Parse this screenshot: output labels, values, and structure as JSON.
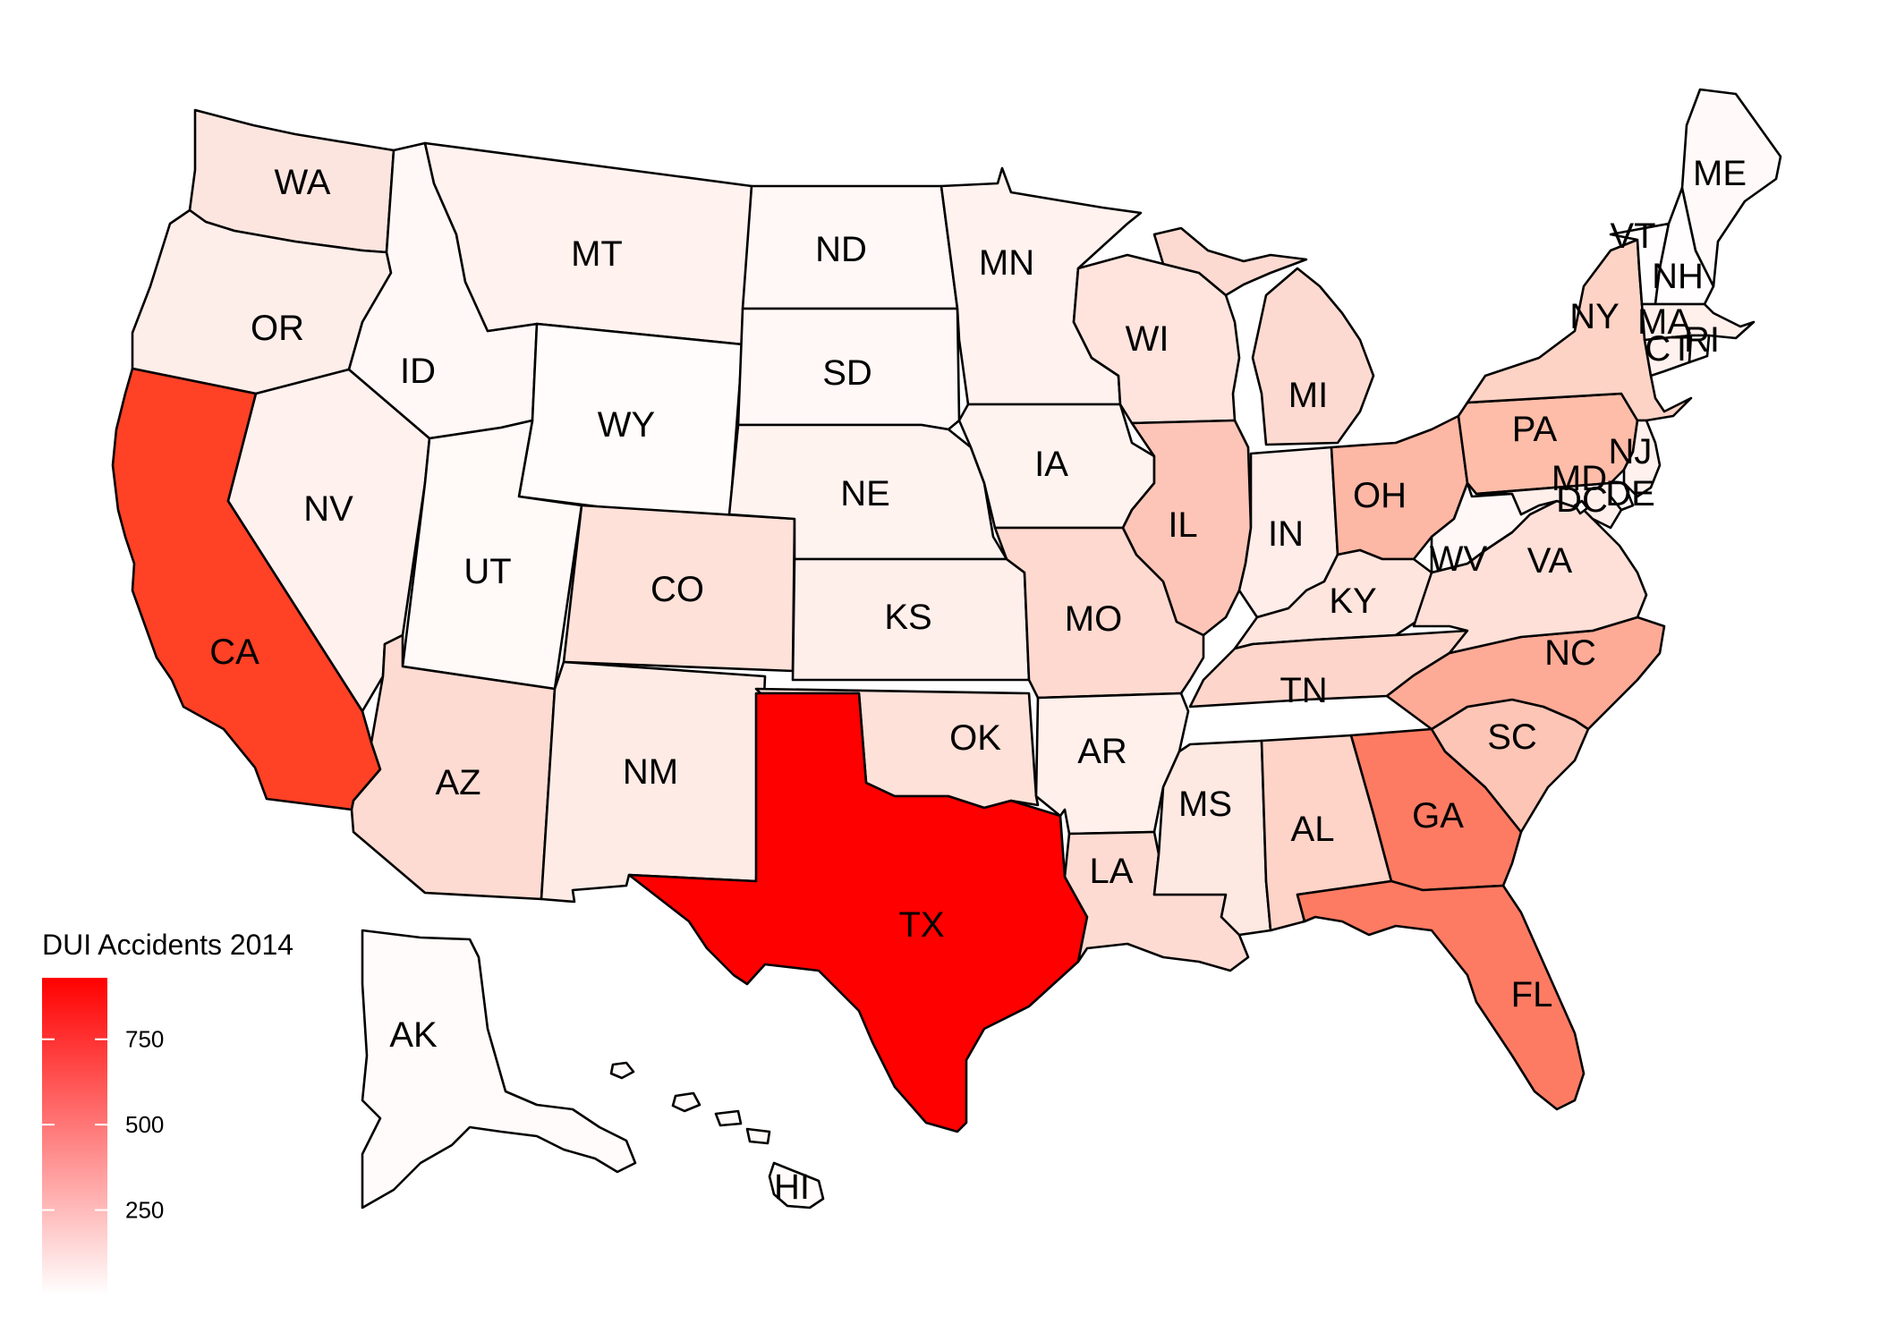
{
  "map": {
    "type": "choropleth",
    "region": "United States",
    "color_scale": {
      "low": "#ffffff",
      "high": "#ff0000",
      "min": 0,
      "max": 930
    },
    "legend": {
      "title": "DUI Accidents 2014",
      "ticks": [
        {
          "value": 750,
          "label": "750"
        },
        {
          "value": 500,
          "label": "500"
        },
        {
          "value": 250,
          "label": "250"
        }
      ],
      "placement": "bottom-left"
    },
    "states": [
      {
        "abbr": "WA",
        "fill": "#fde5df"
      },
      {
        "abbr": "OR",
        "fill": "#feeeea"
      },
      {
        "abbr": "CA",
        "fill": "#ff4126"
      },
      {
        "abbr": "NV",
        "fill": "#fff1ee"
      },
      {
        "abbr": "ID",
        "fill": "#fff8f6"
      },
      {
        "abbr": "MT",
        "fill": "#fff2ef"
      },
      {
        "abbr": "WY",
        "fill": "#fffcfb"
      },
      {
        "abbr": "UT",
        "fill": "#fff9f7"
      },
      {
        "abbr": "AZ",
        "fill": "#fedbd2"
      },
      {
        "abbr": "CO",
        "fill": "#fee1d9"
      },
      {
        "abbr": "NM",
        "fill": "#feebe6"
      },
      {
        "abbr": "ND",
        "fill": "#fff8f6"
      },
      {
        "abbr": "SD",
        "fill": "#fff8f6"
      },
      {
        "abbr": "NE",
        "fill": "#fff3f0"
      },
      {
        "abbr": "KS",
        "fill": "#feefeb"
      },
      {
        "abbr": "OK",
        "fill": "#fee1d9"
      },
      {
        "abbr": "TX",
        "fill": "#ff0000"
      },
      {
        "abbr": "MN",
        "fill": "#fff2ef"
      },
      {
        "abbr": "IA",
        "fill": "#fff3f0"
      },
      {
        "abbr": "MO",
        "fill": "#fed9cf"
      },
      {
        "abbr": "AR",
        "fill": "#fff0ec"
      },
      {
        "abbr": "LA",
        "fill": "#fedbd2"
      },
      {
        "abbr": "WI",
        "fill": "#fee4dd"
      },
      {
        "abbr": "IL",
        "fill": "#fdc5b7"
      },
      {
        "abbr": "MS",
        "fill": "#fee8e2"
      },
      {
        "abbr": "MI",
        "fill": "#fddad1"
      },
      {
        "abbr": "IN",
        "fill": "#feede9"
      },
      {
        "abbr": "OH",
        "fill": "#fdb7a5"
      },
      {
        "abbr": "KY",
        "fill": "#fee5de"
      },
      {
        "abbr": "TN",
        "fill": "#fed5ca"
      },
      {
        "abbr": "AL",
        "fill": "#fed3c8"
      },
      {
        "abbr": "GA",
        "fill": "#fe7b63"
      },
      {
        "abbr": "FL",
        "fill": "#fe7b63"
      },
      {
        "abbr": "SC",
        "fill": "#fdc5b6"
      },
      {
        "abbr": "NC",
        "fill": "#fdab97"
      },
      {
        "abbr": "VA",
        "fill": "#fee0d8"
      },
      {
        "abbr": "WV",
        "fill": "#fff8f6"
      },
      {
        "abbr": "PA",
        "fill": "#fdbda9"
      },
      {
        "abbr": "NY",
        "fill": "#fdd3c6"
      },
      {
        "abbr": "VT",
        "fill": "#fffdfd"
      },
      {
        "abbr": "NH",
        "fill": "#fffdfd"
      },
      {
        "abbr": "ME",
        "fill": "#fffaf9"
      },
      {
        "abbr": "MA",
        "fill": "#fff0ec"
      },
      {
        "abbr": "RI",
        "fill": "#fff8f6"
      },
      {
        "abbr": "CT",
        "fill": "#fff2ee"
      },
      {
        "abbr": "NJ",
        "fill": "#fff1ed"
      },
      {
        "abbr": "DE",
        "fill": "#fff8f6"
      },
      {
        "abbr": "MD",
        "fill": "#ffefeb"
      },
      {
        "abbr": "DC",
        "fill": "#fffafa"
      },
      {
        "abbr": "AK",
        "fill": "#fffbfa"
      },
      {
        "abbr": "HI",
        "fill": "#fffbfa"
      }
    ]
  }
}
